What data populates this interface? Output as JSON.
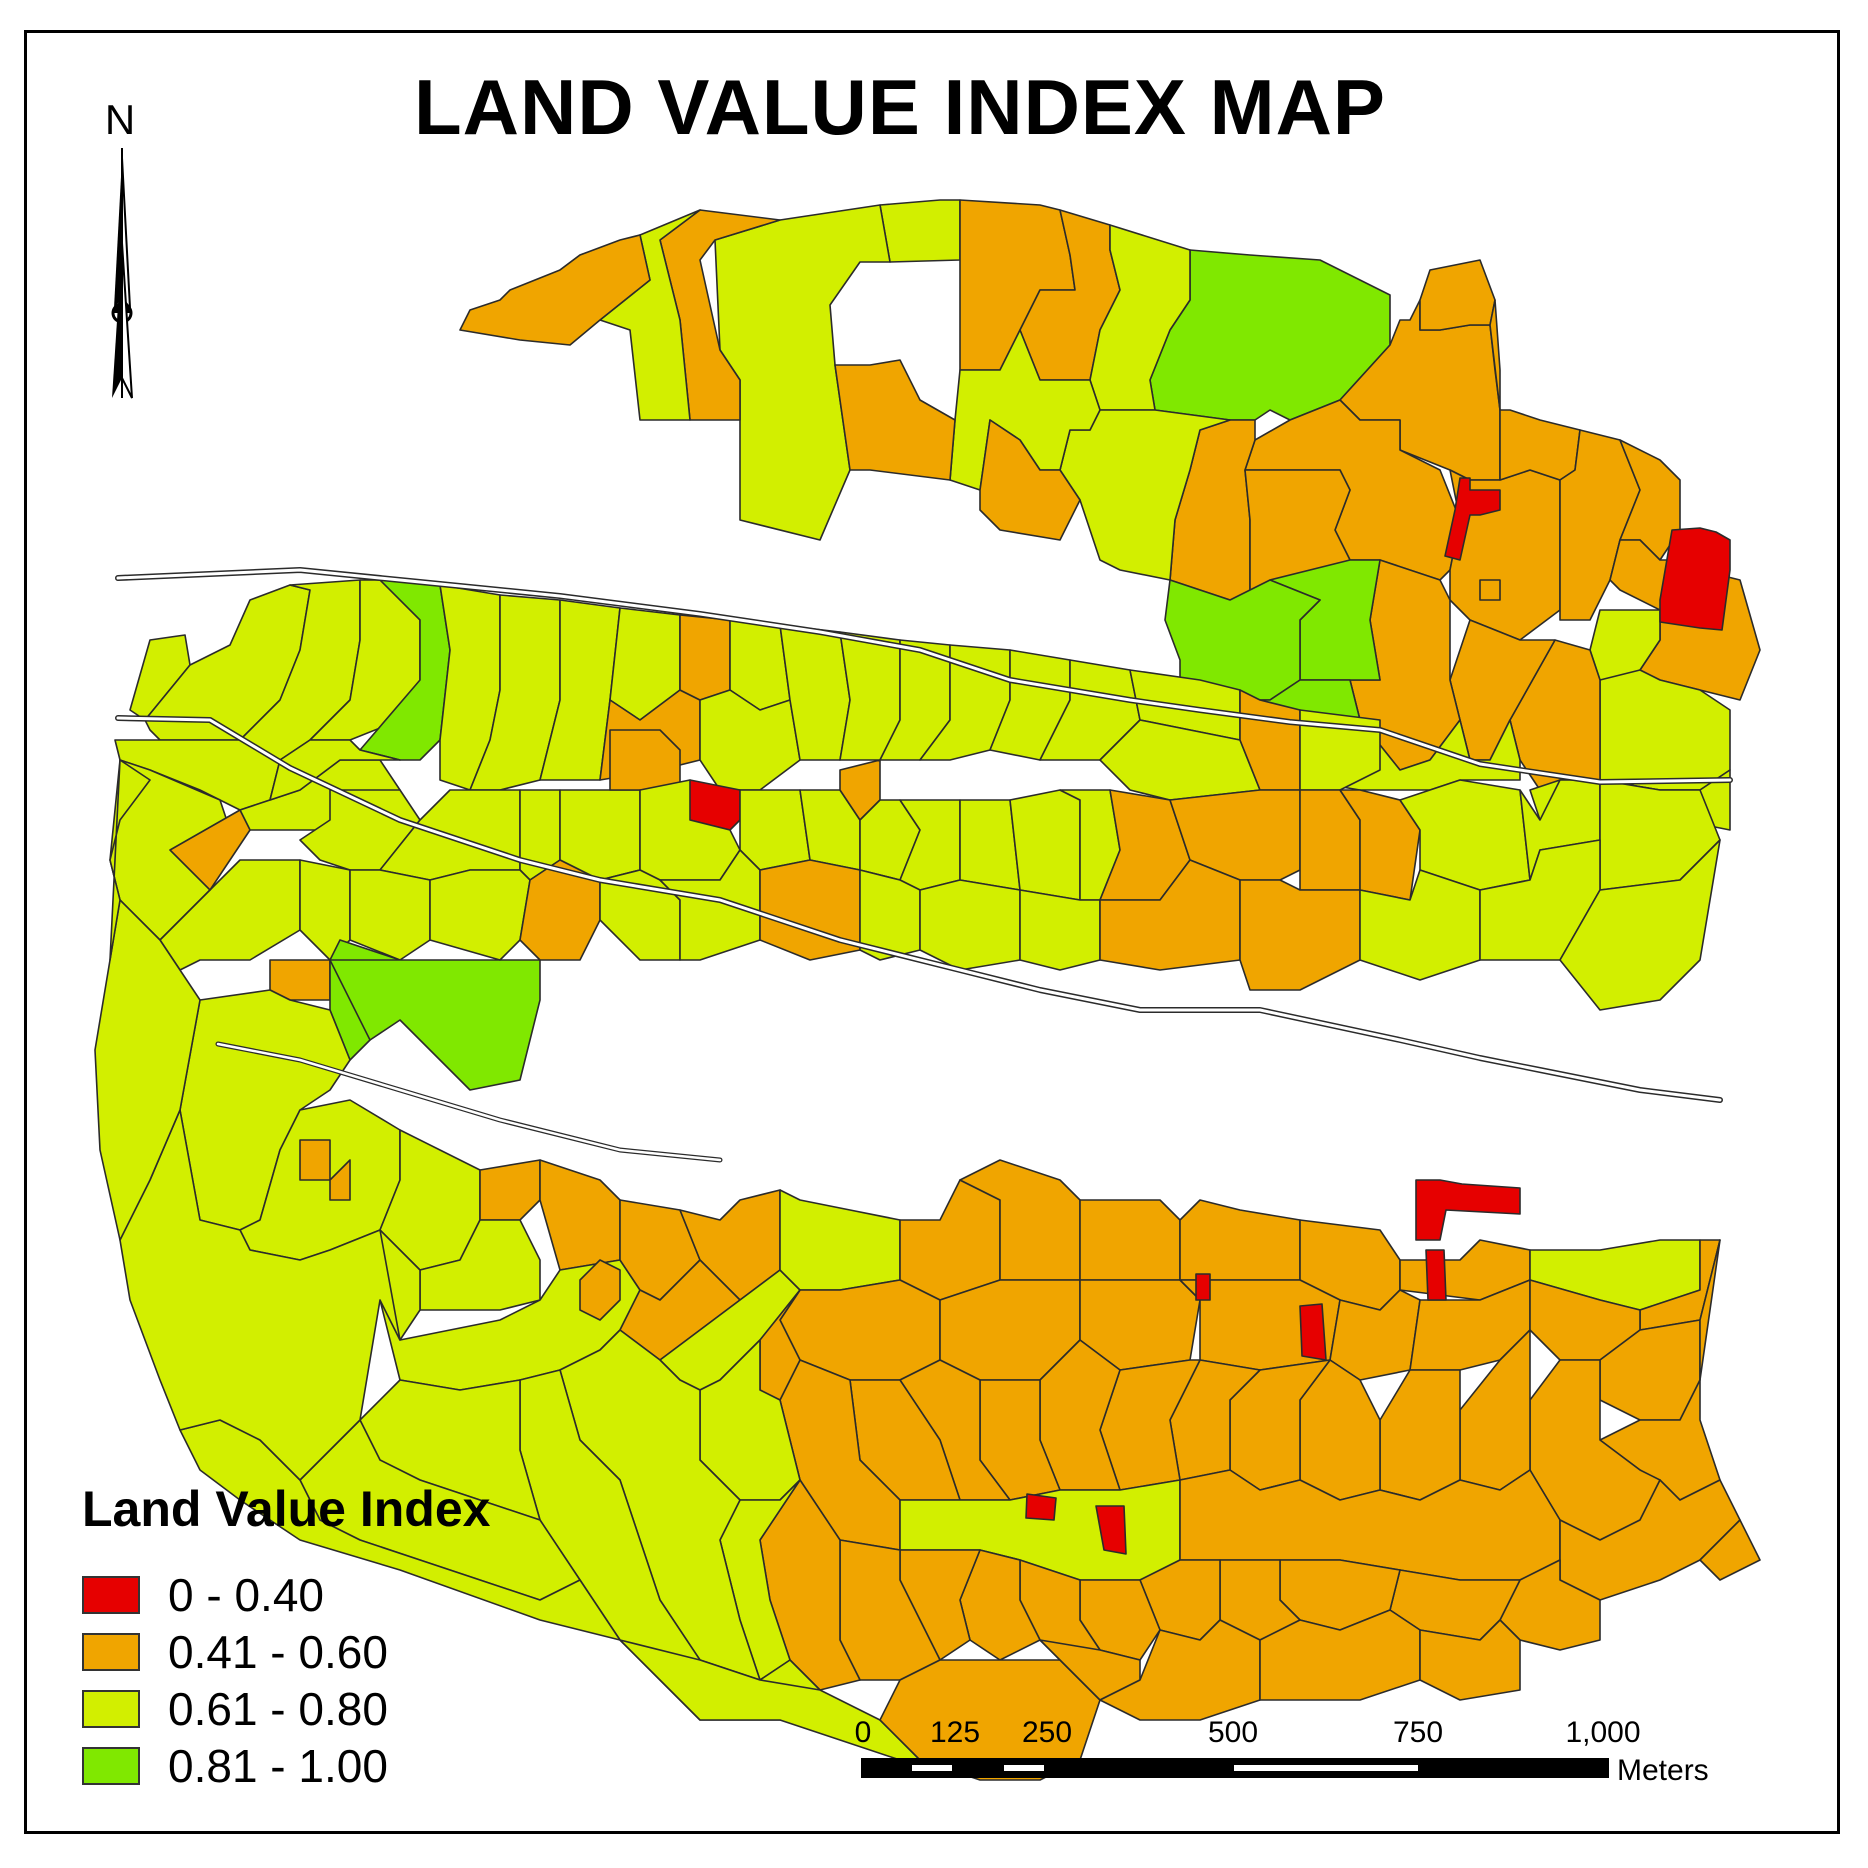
{
  "title": "LAND VALUE INDEX MAP",
  "north_arrow": {
    "letter": "N",
    "icon": "north-arrow-icon"
  },
  "legend": {
    "title": "Land Value Index",
    "classes": [
      {
        "label": "0 - 0.40",
        "color": "#e60000"
      },
      {
        "label": "0.41 - 0.60",
        "color": "#f0a500"
      },
      {
        "label": "0.61 - 0.80",
        "color": "#d2ef00"
      },
      {
        "label": "0.81 - 1.00",
        "color": "#80e800"
      }
    ]
  },
  "scale_bar": {
    "ticks": [
      "0",
      "125",
      "250",
      "500",
      "750",
      "1,000"
    ],
    "unit": "Meters"
  },
  "colors": {
    "boundary": "#2b2b2b",
    "road": "#ffffff"
  }
}
